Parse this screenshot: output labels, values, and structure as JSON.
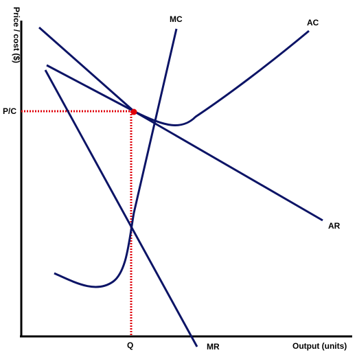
{
  "diagram": {
    "y_axis_label": "Price / cost ($)",
    "x_axis_label": "Output (units)",
    "price_cost_label": "P/C",
    "quantity_label": "Q",
    "curves": {
      "mc": "MC",
      "ac": "AC",
      "ar": "AR",
      "mr": "MR"
    }
  },
  "colors": {
    "curve": "#0c1466",
    "guide": "#e0000a",
    "axis": "#000000",
    "point": "#e0000a"
  }
}
